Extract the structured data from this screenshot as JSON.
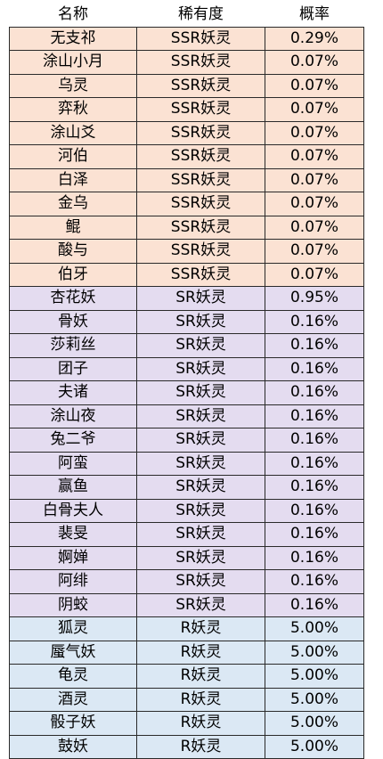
{
  "header": {
    "name": "名称",
    "rarity": "稀有度",
    "probability": "概率"
  },
  "tiers": {
    "ssr": "SSR妖灵",
    "sr": "SR妖灵",
    "r": "R妖灵"
  },
  "colors": {
    "ssr": "#fbe2d3",
    "sr": "#e4dcf0",
    "r": "#dbe8f4"
  },
  "rows": [
    {
      "name": "无支祁",
      "rarity": "SSR妖灵",
      "prob": "0.29%",
      "tier": "ssr"
    },
    {
      "name": "涂山小月",
      "rarity": "SSR妖灵",
      "prob": "0.07%",
      "tier": "ssr"
    },
    {
      "name": "乌灵",
      "rarity": "SSR妖灵",
      "prob": "0.07%",
      "tier": "ssr"
    },
    {
      "name": "弈秋",
      "rarity": "SSR妖灵",
      "prob": "0.07%",
      "tier": "ssr"
    },
    {
      "name": "涂山爻",
      "rarity": "SSR妖灵",
      "prob": "0.07%",
      "tier": "ssr"
    },
    {
      "name": "河伯",
      "rarity": "SSR妖灵",
      "prob": "0.07%",
      "tier": "ssr"
    },
    {
      "name": "白泽",
      "rarity": "SSR妖灵",
      "prob": "0.07%",
      "tier": "ssr"
    },
    {
      "name": "金乌",
      "rarity": "SSR妖灵",
      "prob": "0.07%",
      "tier": "ssr"
    },
    {
      "name": "鲲",
      "rarity": "SSR妖灵",
      "prob": "0.07%",
      "tier": "ssr"
    },
    {
      "name": "酸与",
      "rarity": "SSR妖灵",
      "prob": "0.07%",
      "tier": "ssr"
    },
    {
      "name": "伯牙",
      "rarity": "SSR妖灵",
      "prob": "0.07%",
      "tier": "ssr"
    },
    {
      "name": "杏花妖",
      "rarity": "SR妖灵",
      "prob": "0.95%",
      "tier": "sr"
    },
    {
      "name": "骨妖",
      "rarity": "SR妖灵",
      "prob": "0.16%",
      "tier": "sr"
    },
    {
      "name": "莎莉丝",
      "rarity": "SR妖灵",
      "prob": "0.16%",
      "tier": "sr"
    },
    {
      "name": "团子",
      "rarity": "SR妖灵",
      "prob": "0.16%",
      "tier": "sr"
    },
    {
      "name": "夫诸",
      "rarity": "SR妖灵",
      "prob": "0.16%",
      "tier": "sr"
    },
    {
      "name": "涂山夜",
      "rarity": "SR妖灵",
      "prob": "0.16%",
      "tier": "sr"
    },
    {
      "name": "兔二爷",
      "rarity": "SR妖灵",
      "prob": "0.16%",
      "tier": "sr"
    },
    {
      "name": "阿蛮",
      "rarity": "SR妖灵",
      "prob": "0.16%",
      "tier": "sr"
    },
    {
      "name": "赢鱼",
      "rarity": "SR妖灵",
      "prob": "0.16%",
      "tier": "sr"
    },
    {
      "name": "白骨夫人",
      "rarity": "SR妖灵",
      "prob": "0.16%",
      "tier": "sr"
    },
    {
      "name": "裴旻",
      "rarity": "SR妖灵",
      "prob": "0.16%",
      "tier": "sr"
    },
    {
      "name": "婀婵",
      "rarity": "SR妖灵",
      "prob": "0.16%",
      "tier": "sr"
    },
    {
      "name": "阿绯",
      "rarity": "SR妖灵",
      "prob": "0.16%",
      "tier": "sr"
    },
    {
      "name": "阴蛟",
      "rarity": "SR妖灵",
      "prob": "0.16%",
      "tier": "sr"
    },
    {
      "name": "狐灵",
      "rarity": "R妖灵",
      "prob": "5.00%",
      "tier": "r"
    },
    {
      "name": "蜃气妖",
      "rarity": "R妖灵",
      "prob": "5.00%",
      "tier": "r"
    },
    {
      "name": "龟灵",
      "rarity": "R妖灵",
      "prob": "5.00%",
      "tier": "r"
    },
    {
      "name": "酒灵",
      "rarity": "R妖灵",
      "prob": "5.00%",
      "tier": "r"
    },
    {
      "name": "骰子妖",
      "rarity": "R妖灵",
      "prob": "5.00%",
      "tier": "r"
    },
    {
      "name": "鼓妖",
      "rarity": "R妖灵",
      "prob": "5.00%",
      "tier": "r"
    }
  ]
}
